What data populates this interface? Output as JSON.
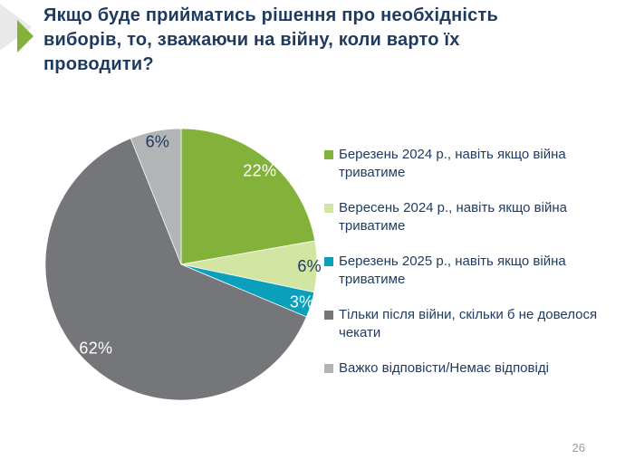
{
  "slide": {
    "title": "Якщо буде прийматись рішення про необхідність\nвиборів, то, зважаючи на війну, коли варто їх\nпроводити?",
    "page_number": "26",
    "title_color": "#1e3a5f",
    "accent_color": "#82b23a",
    "deco_gray_color": "#e9e9e9"
  },
  "chart_data": {
    "type": "pie",
    "title": "",
    "categories": [
      "Березень 2024 р., навіть якщо війна триватиме",
      "Вересень 2024 р., навіть якщо війна триватиме",
      "Березень 2025 р., навіть якщо війна триватиме",
      "Тільки після війни, скільки б не довелося чекати",
      "Важко відповісти/Немає відповіді"
    ],
    "values": [
      22,
      6,
      3,
      62,
      6
    ],
    "labels": [
      "22%",
      "6%",
      "3%",
      "62%",
      "6%"
    ],
    "colors": [
      "#82b23a",
      "#d3e5a2",
      "#0aa0bc",
      "#747679",
      "#b3b4b6"
    ],
    "label_text_colors": [
      "#ffffff",
      "#1e3a5f",
      "#ffffff",
      "#ffffff",
      "#1e3a5f"
    ],
    "legend_position": "right",
    "start_angle_deg": 0,
    "direction": "clockwise"
  }
}
